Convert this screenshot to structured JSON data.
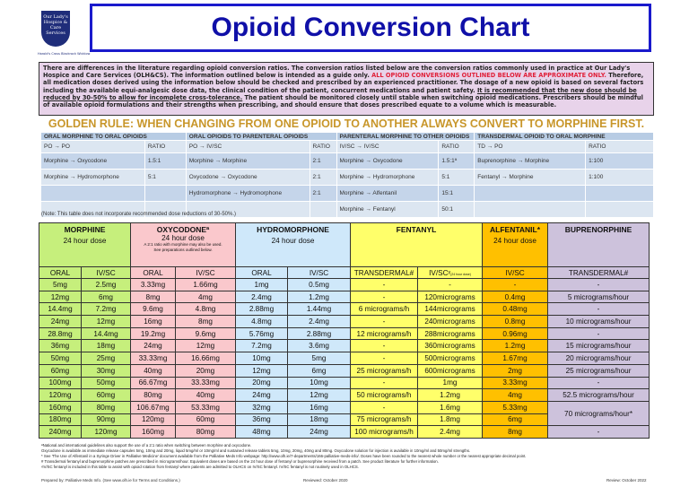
{
  "logo": {
    "text": "Our Lady's Hospice & Care Services",
    "sites": "Harold's Cross Blackrock Wicklow"
  },
  "title": "Opioid Conversion Chart",
  "disclaimer": {
    "p1": "There are differences in the literature regarding opioid conversion ratios. The conversion ratios listed below are the conversion ratios commonly used in practice at Our Lady's Hospice and Care Services (OLH&CS). The information outlined below is intended as a guide only. ",
    "warning": "ALL OPIOID CONVERSIONS OUTLINED BELOW ARE APPROXIMATE ONLY.",
    "p2": " Therefore, all medication doses derived using the information below should be checked and prescribed by an experienced practitioner. The dosage of a new opioid is based on several factors including the available equi-analgesic dose data, the clinical condition of the patient, concurrent medications and patient safety. ",
    "recommendation": "It is recommended that the new dose should be reduced by 30-50% to allow for incomplete cross-tolerance.",
    "p3": " The patient should be monitored closely until stable when switching opioid medications. Prescribers should be mindful of available opioid formulations and their strengths when prescribing, and should ensure that doses prescribed equate to a volume which is measurable."
  },
  "golden_rule": "GOLDEN RULE: WHEN CHANGING FROM ONE OPIOID TO ANOTHER ALWAYS CONVERT TO MORPHINE FIRST.",
  "ratio_table": {
    "headers": [
      "ORAL MORPHINE TO ORAL OPIOIDS",
      "ORAL OPIOIDS TO PARENTERAL OPIOIDS",
      "PARENTERAL MORPHINE TO OTHER OPIOIDS",
      "TRANSDERMAL OPIOID TO ORAL MORPHINE"
    ],
    "subheaders": [
      [
        "PO → PO",
        "RATIO"
      ],
      [
        "PO → IV/SC",
        "RATIO"
      ],
      [
        "IV/SC → IV/SC",
        "RATIO"
      ],
      [
        "TD → PO",
        "RATIO"
      ]
    ],
    "rows": [
      [
        [
          "Morphine → Oxycodone",
          "1.5:1"
        ],
        [
          "Morphine → Morphine",
          "2:1"
        ],
        [
          "Morphine → Oxycodone",
          "1.5:1ª"
        ],
        [
          "Buprenorphine → Morphine",
          "1:100"
        ]
      ],
      [
        [
          "Morphine → Hydromorphone",
          "5:1"
        ],
        [
          "Oxycodone → Oxycodone",
          "2:1"
        ],
        [
          "Morphine → Hydromorphone",
          "5:1"
        ],
        [
          "Fentanyl → Morphine",
          "1:100"
        ]
      ],
      [
        [
          "",
          ""
        ],
        [
          "Hydromorphone → Hydromorphone",
          "2:1"
        ],
        [
          "Morphine → Alfentanil",
          "15:1"
        ],
        [
          "",
          ""
        ]
      ],
      [
        [
          "",
          ""
        ],
        [
          "",
          ""
        ],
        [
          "Morphine → Fentanyl",
          "50:1"
        ],
        [
          "",
          ""
        ]
      ]
    ]
  },
  "note": "(Note: This table does not incorporate recommended dose reductions of 30-50%.)",
  "main_table": {
    "groups": {
      "morphine": {
        "name": "MORPHINE",
        "sub": "24 hour dose"
      },
      "oxycodone": {
        "name": "OXYCODONEª",
        "sub": "24 hour dose",
        "note1": "A 2:1 ratio with morphine may also be used.",
        "note2": "See preparations outlined below."
      },
      "hydromorphone": {
        "name": "HYDROMORPHONE",
        "sub": "24 hour dose"
      },
      "fentanyl": {
        "name": "FENTANYL"
      },
      "alfentanil": {
        "name": "ALFENTANIL*",
        "sub": "24 hour dose"
      },
      "buprenorphine": {
        "name": "BUPRENORPHINE"
      }
    },
    "columns": [
      "ORAL",
      "IV/SC",
      "ORAL",
      "IV/SC",
      "ORAL",
      "IV/SC",
      "TRANSDERMAL#",
      "IV/SCᵞ",
      "IV/SC",
      "TRANSDERMAL#"
    ],
    "fentanyl_ivsc_note": "(24 hour dose)",
    "rows": [
      [
        "5mg",
        "2.5mg",
        "3.33mg",
        "1.66mg",
        "1mg",
        "0.5mg",
        "-",
        "-",
        "-",
        "-"
      ],
      [
        "12mg",
        "6mg",
        "8mg",
        "4mg",
        "2.4mg",
        "1.2mg",
        "-",
        "120micrograms",
        "0.4mg",
        "5 micrograms/hour"
      ],
      [
        "14.4mg",
        "7.2mg",
        "9.6mg",
        "4.8mg",
        "2.88mg",
        "1.44mg",
        "6 micrograms/h",
        "144micrograms",
        "0.48mg",
        "-"
      ],
      [
        "24mg",
        "12mg",
        "16mg",
        "8mg",
        "4.8mg",
        "2.4mg",
        "-",
        "240micrograms",
        "0.8mg",
        "10 micrograms/hour"
      ],
      [
        "28.8mg",
        "14.4mg",
        "19.2mg",
        "9.6mg",
        "5.76mg",
        "2.88mg",
        "12 micrograms/h",
        "288micrograms",
        "0.96mg",
        "-"
      ],
      [
        "36mg",
        "18mg",
        "24mg",
        "12mg",
        "7.2mg",
        "3.6mg",
        "-",
        "360micrograms",
        "1.2mg",
        "15 micrograms/hour"
      ],
      [
        "50mg",
        "25mg",
        "33.33mg",
        "16.66mg",
        "10mg",
        "5mg",
        "-",
        "500micrograms",
        "1.67mg",
        "20 micrograms/hour"
      ],
      [
        "60mg",
        "30mg",
        "40mg",
        "20mg",
        "12mg",
        "6mg",
        "25 micrograms/h",
        "600micrograms",
        "2mg",
        "25 micrograms/hour"
      ],
      [
        "100mg",
        "50mg",
        "66.67mg",
        "33.33mg",
        "20mg",
        "10mg",
        "-",
        "1mg",
        "3.33mg",
        "-"
      ],
      [
        "120mg",
        "60mg",
        "80mg",
        "40mg",
        "24mg",
        "12mg",
        "50 micrograms/h",
        "1.2mg",
        "4mg",
        "52.5 micrograms/hour"
      ],
      [
        "160mg",
        "80mg",
        "106.67mg",
        "53.33mg",
        "32mg",
        "16mg",
        "-",
        "1.6mg",
        "5.33mg",
        "70 micrograms/hour*"
      ],
      [
        "180mg",
        "90mg",
        "120mg",
        "60mg",
        "36mg",
        "18mg",
        "75 micrograms/h",
        "1.8mg",
        "6mg",
        null
      ],
      [
        "240mg",
        "120mg",
        "160mg",
        "80mg",
        "48mg",
        "24mg",
        "100 micrograms/h",
        "2.4mg",
        "8mg",
        "-"
      ]
    ]
  },
  "footnotes": [
    "ªNational and international guidelines also support the use of a 2:1 ratio when switching between morphine and oxycodone.",
    "Oxycodone is available as immediate release capsules 5mg, 10mg and 20mg, liquid 5mg/ml or 10mg/ml and sustained release tablets 5mg, 10mg, 20mg, 40mg and 80mg. Oxycodone solution for injection is available in 10mg/ml and 50mg/ml strengths.",
    "* See 'The Use of Alfentanil in a Syringe Driver in Palliative Medicine' document available from the Palliative Meds Info webpage: http://www.olh.ie/7-departments/166-palliative-meds-info/. Doses have been rounded to the nearest whole number or the nearest appropriate decimal point.",
    "# Transdermal fentanyl and buprenorphine patches are prescribed in micrograms/hour. Equivalent doses are based on the 24 hour dose of fentanyl or buprenorphine received from a patch. See product literature for further information.",
    "ᵞIV/SC fentanyl is included in this table to assist with opioid rotation from fentanyl where patients are admitted to OLHCS on IV/SC fentanyl. IV/SC fentanyl is not routinely used in OLHCS."
  ],
  "footer": {
    "prepared": "Prepared by: Palliative Meds Info. (See www.olh.ie for Terms and Conditions.)",
    "reviewed": "Reviewed: October 2020",
    "review": "Review: October 2022"
  }
}
